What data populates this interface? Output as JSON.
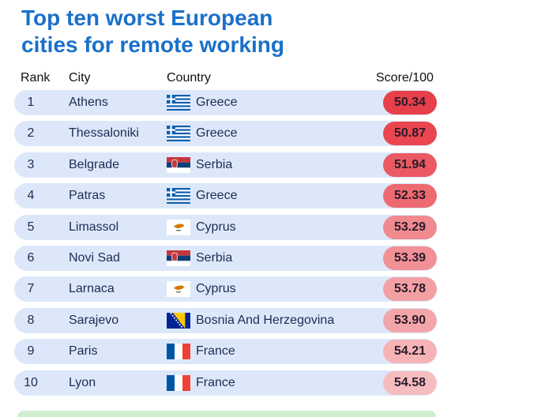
{
  "header": {
    "title_line1": "Top ten worst European",
    "title_line2": "cities for remote working"
  },
  "table": {
    "columns": [
      "Rank",
      "City",
      "Country",
      "Score/100"
    ],
    "rows": [
      [
        "1",
        "Athens",
        "Greece",
        "50.34"
      ],
      [
        "2",
        "Thessaloniki",
        "Greece",
        "50.87"
      ],
      [
        "3",
        "Belgrade",
        "Serbia",
        "51.94"
      ],
      [
        "4",
        "Patras",
        "Greece",
        "52.33"
      ],
      [
        "5",
        "Limassol",
        "Cyprus",
        "53.29"
      ],
      [
        "6",
        "Novi Sad",
        "Serbia",
        "53.39"
      ],
      [
        "7",
        "Larnaca",
        "Cyprus",
        "53.78"
      ],
      [
        "8",
        "Sarajevo",
        "Bosnia And Herzegovina",
        "53.90"
      ],
      [
        "9",
        "Paris",
        "France",
        "54.21"
      ],
      [
        "10",
        "Lyon",
        "France",
        "54.58"
      ]
    ],
    "score_colors": [
      "#e8404a",
      "#e9464f",
      "#eb5a62",
      "#ed6a71",
      "#f08a8f",
      "#f19095",
      "#f3a0a4",
      "#f3a6aa",
      "#f5b3b6",
      "#f6bdc0"
    ]
  }
}
